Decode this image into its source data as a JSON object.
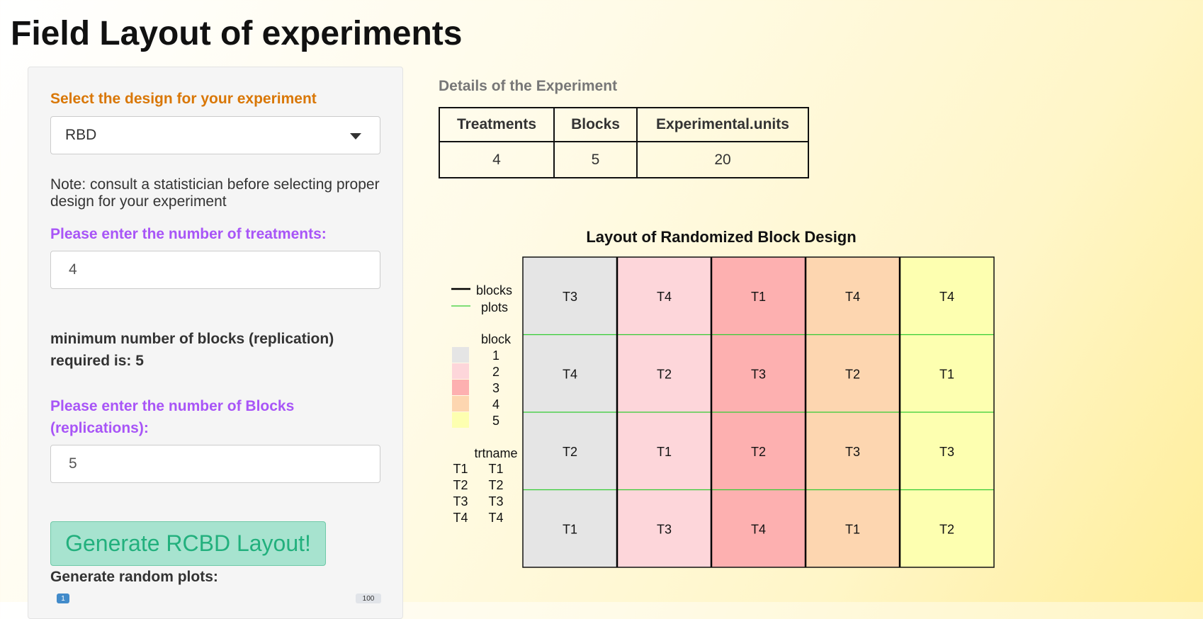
{
  "app": {
    "title": "Field Layout of experiments"
  },
  "sidebar": {
    "design_label": "Select the design for your experiment",
    "design_value": "RBD",
    "note": "Note: consult a statistician before selecting proper design for your experiment",
    "treatments_label": "Please enter the number of treatments:",
    "treatments_value": "4",
    "min_blocks_text": "minimum number of blocks (replication) required is: 5",
    "blocks_label": "Please enter the number of Blocks (replications):",
    "blocks_value": "5",
    "generate_button": "Generate RCBD Layout!",
    "random_plots_label": "Generate random plots:",
    "slider_min": "1",
    "slider_max": "100"
  },
  "details": {
    "title": "Details of the Experiment",
    "headers": [
      "Treatments",
      "Blocks",
      "Experimental.units"
    ],
    "values": [
      "4",
      "5",
      "20"
    ]
  },
  "plot": {
    "title": "Layout of Randomized Block Design",
    "legend": {
      "lines": [
        "blocks",
        "plots"
      ],
      "block_title": "block",
      "block_levels": [
        "1",
        "2",
        "3",
        "4",
        "5"
      ],
      "block_colors": [
        "#e5e5e5",
        "#fdd6da",
        "#fdb0b0",
        "#fdd6b0",
        "#fdffb0"
      ],
      "trt_title": "trtname",
      "trt_codes": [
        "T1",
        "T2",
        "T3",
        "T4"
      ],
      "trt_names": [
        "T1",
        "T2",
        "T3",
        "T4"
      ]
    },
    "grid": [
      [
        "T3",
        "T4",
        "T1",
        "T4",
        "T4"
      ],
      [
        "T4",
        "T2",
        "T3",
        "T2",
        "T1"
      ],
      [
        "T2",
        "T1",
        "T2",
        "T3",
        "T3"
      ],
      [
        "T1",
        "T3",
        "T4",
        "T1",
        "T2"
      ]
    ],
    "block_line_color": "#000000",
    "plot_line_color": "#33cc33"
  }
}
